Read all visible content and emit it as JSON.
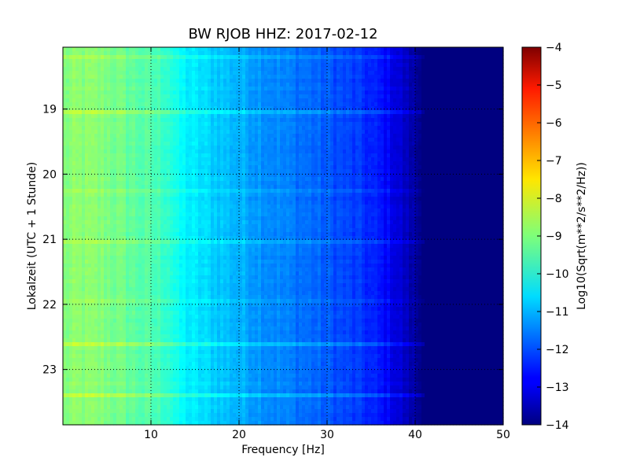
{
  "chart_data": {
    "type": "heatmap",
    "title": "BW RJOB HHZ: 2017-02-12",
    "xlabel": "Frequency [Hz]",
    "ylabel": "Lokalzeit (UTC + 1 Stunde)",
    "xlim": [
      0,
      50
    ],
    "ylim": [
      18.05,
      23.85
    ],
    "y_inverted": true,
    "x_ticks": [
      "10",
      "20",
      "30",
      "40",
      "50"
    ],
    "x_tick_values": [
      10,
      20,
      30,
      40,
      50
    ],
    "y_ticks": [
      "19",
      "20",
      "21",
      "22",
      "23"
    ],
    "y_tick_values": [
      19,
      20,
      21,
      22,
      23
    ],
    "grid": true,
    "colorbar": {
      "label": "Log10(Sqrt(m**2/s**2/Hz))",
      "range": [
        -14,
        -4
      ],
      "ticks": [
        "−4",
        "−5",
        "−6",
        "−7",
        "−8",
        "−9",
        "−10",
        "−11",
        "−12",
        "−13",
        "−14"
      ],
      "tick_values": [
        -4,
        -5,
        -6,
        -7,
        -8,
        -9,
        -10,
        -11,
        -12,
        -13,
        -14
      ],
      "colormap": "jet"
    },
    "spectrum_profile": {
      "frequency_hz": [
        0,
        2,
        5,
        8,
        10,
        12,
        13,
        15,
        18,
        20,
        22,
        25,
        28,
        30,
        32,
        34,
        36,
        37,
        38,
        39,
        40,
        41,
        42,
        50
      ],
      "level": [
        -9.0,
        -8.9,
        -9.0,
        -9.3,
        -9.5,
        -9.7,
        -10.2,
        -10.5,
        -10.8,
        -11.0,
        -11.2,
        -11.5,
        -11.7,
        -11.9,
        -12.1,
        -12.3,
        -12.6,
        -12.8,
        -13.1,
        -13.4,
        -13.7,
        -14.0,
        -14.0,
        -14.0
      ]
    }
  }
}
